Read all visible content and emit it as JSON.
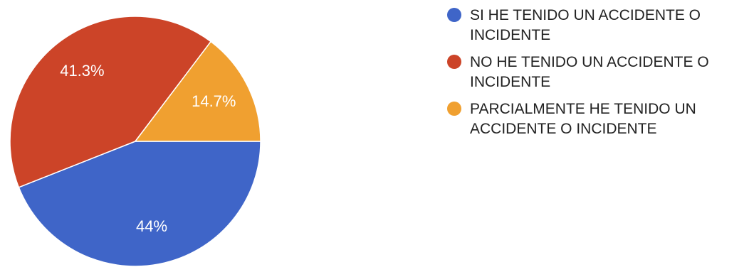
{
  "chart_data": {
    "type": "pie",
    "title": "",
    "legend_position": "right",
    "categories": [
      "SI HE TENIDO UN ACCIDENTE O INCIDENTE",
      "NO HE TENIDO UN ACCIDENTE O INCIDENTE",
      "PARCIALMENTE HE TENIDO UN ACCIDENTE O INCIDENTE"
    ],
    "values": [
      44,
      41.3,
      14.7
    ],
    "value_labels": [
      "44%",
      "41.3%",
      "14.7%"
    ],
    "colors": [
      "#3f65c8",
      "#cc4428",
      "#f0a030"
    ]
  }
}
